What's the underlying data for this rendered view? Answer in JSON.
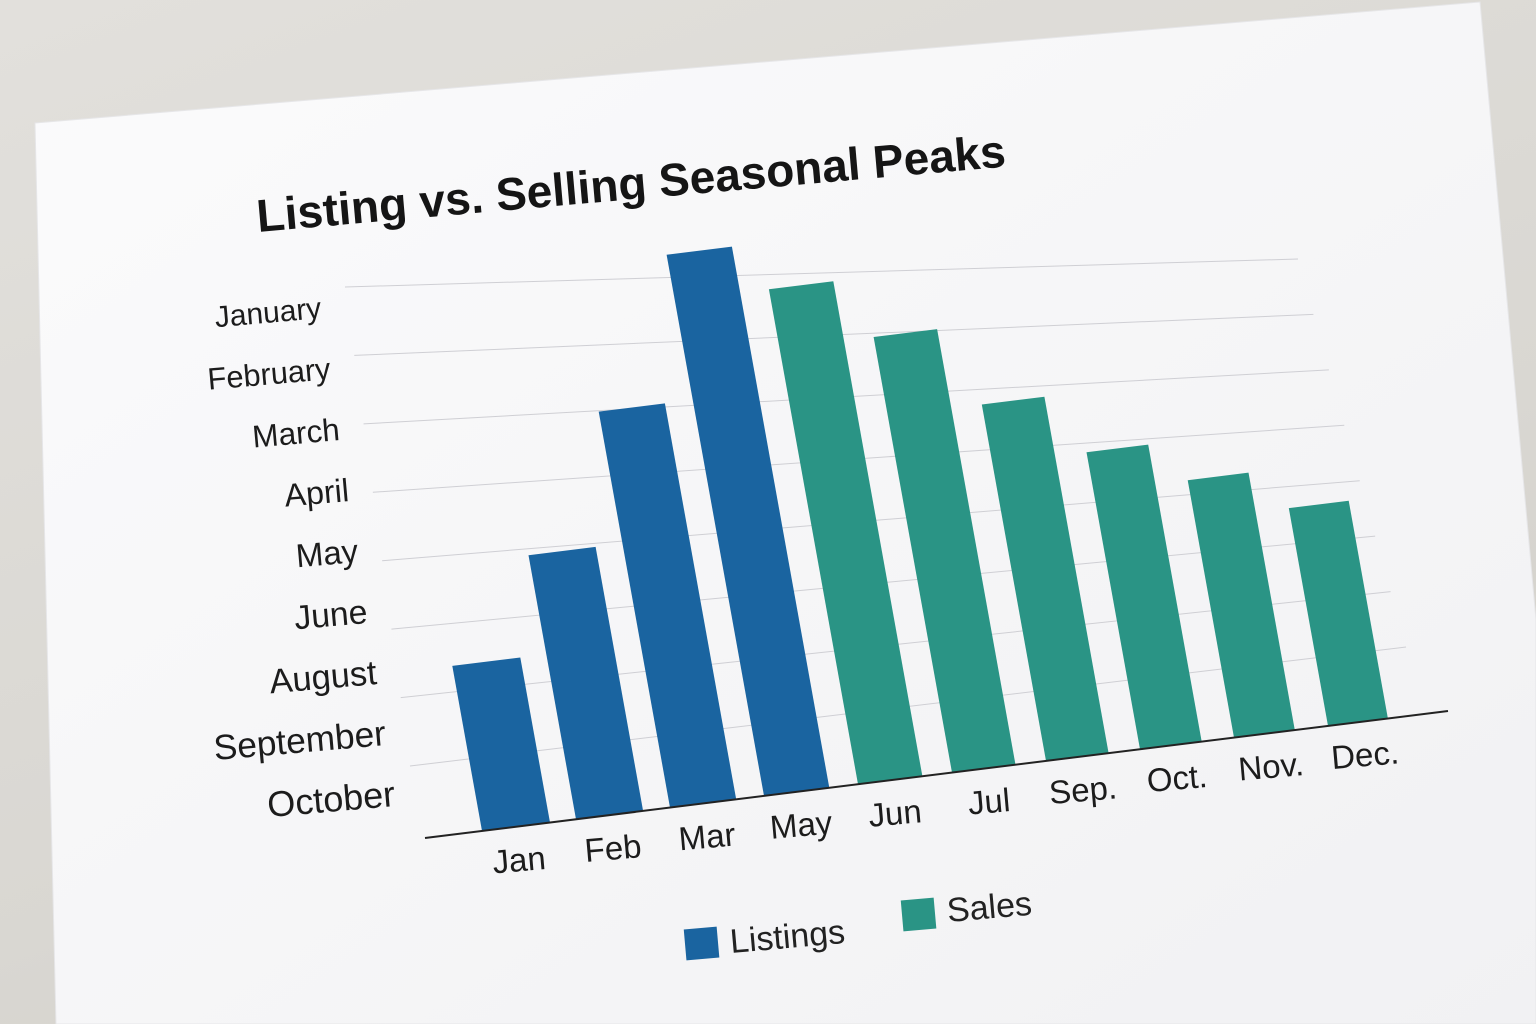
{
  "chart_data": {
    "type": "bar",
    "title": "Listing vs. Selling Seasonal Peaks",
    "categories": [
      "Jan",
      "Feb",
      "Mar",
      "May",
      "Jun",
      "Jul",
      "Sep.",
      "Oct.",
      "Nov.",
      "Dec."
    ],
    "y_tick_labels": [
      "January",
      "February",
      "March",
      "April",
      "May",
      "June",
      "August",
      "September",
      "October"
    ],
    "bar_values": [
      2.5,
      4.0,
      6.0,
      8.2,
      7.5,
      6.6,
      5.4,
      4.5,
      3.9,
      3.3
    ],
    "bar_series": [
      "Listings",
      "Listings",
      "Listings",
      "Listings",
      "Sales",
      "Sales",
      "Sales",
      "Sales",
      "Sales",
      "Sales"
    ],
    "series": [
      {
        "name": "Listings",
        "color": "#1a64a0"
      },
      {
        "name": "Sales",
        "color": "#2a9485"
      }
    ],
    "ylim": [
      0,
      8.5
    ],
    "grid": true,
    "legend_position": "bottom-center"
  }
}
